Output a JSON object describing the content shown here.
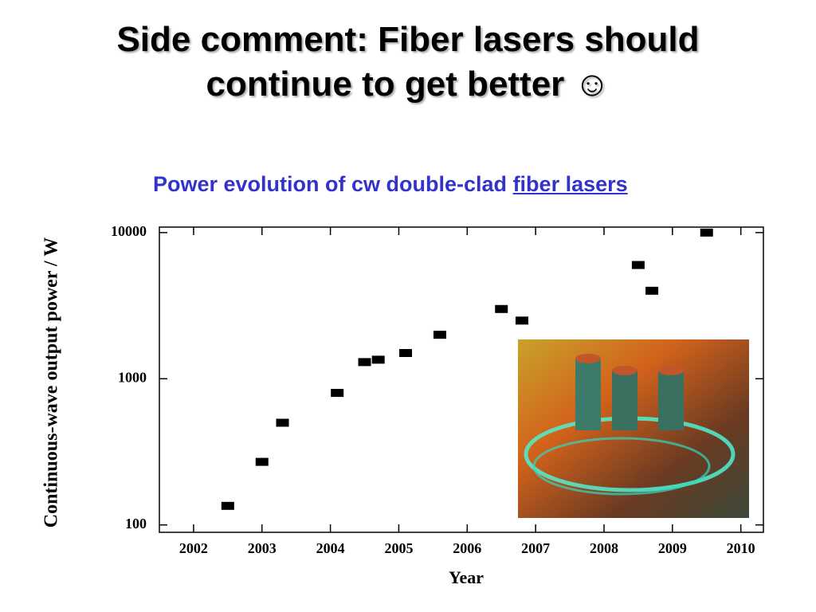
{
  "header": {
    "title": "Side comment: Fiber lasers should continue to get better ☺",
    "subtitle": "Power evolution of cw double-clad",
    "subtitle_link": "fiber lasers"
  },
  "chart_data": {
    "type": "scatter",
    "x_label": "Year",
    "y_label": "Continuous-wave output power / W",
    "x": [
      2002.5,
      2003.0,
      2003.3,
      2004.1,
      2004.5,
      2004.7,
      2005.1,
      2005.6,
      2006.5,
      2006.8,
      2008.5,
      2008.7,
      2009.5
    ],
    "values": [
      135,
      270,
      500,
      800,
      1300,
      1350,
      1500,
      2000,
      3000,
      2500,
      6000,
      4000,
      10000
    ],
    "color": "#000000",
    "y_log": true,
    "xlim": [
      2001.5,
      2010.33
    ],
    "xticks": [
      2002,
      2003,
      2004,
      2005,
      2006,
      2007,
      2008,
      2009,
      2010
    ],
    "ylim": [
      89,
      10900
    ],
    "yticks": [
      100,
      1000,
      10000
    ]
  }
}
